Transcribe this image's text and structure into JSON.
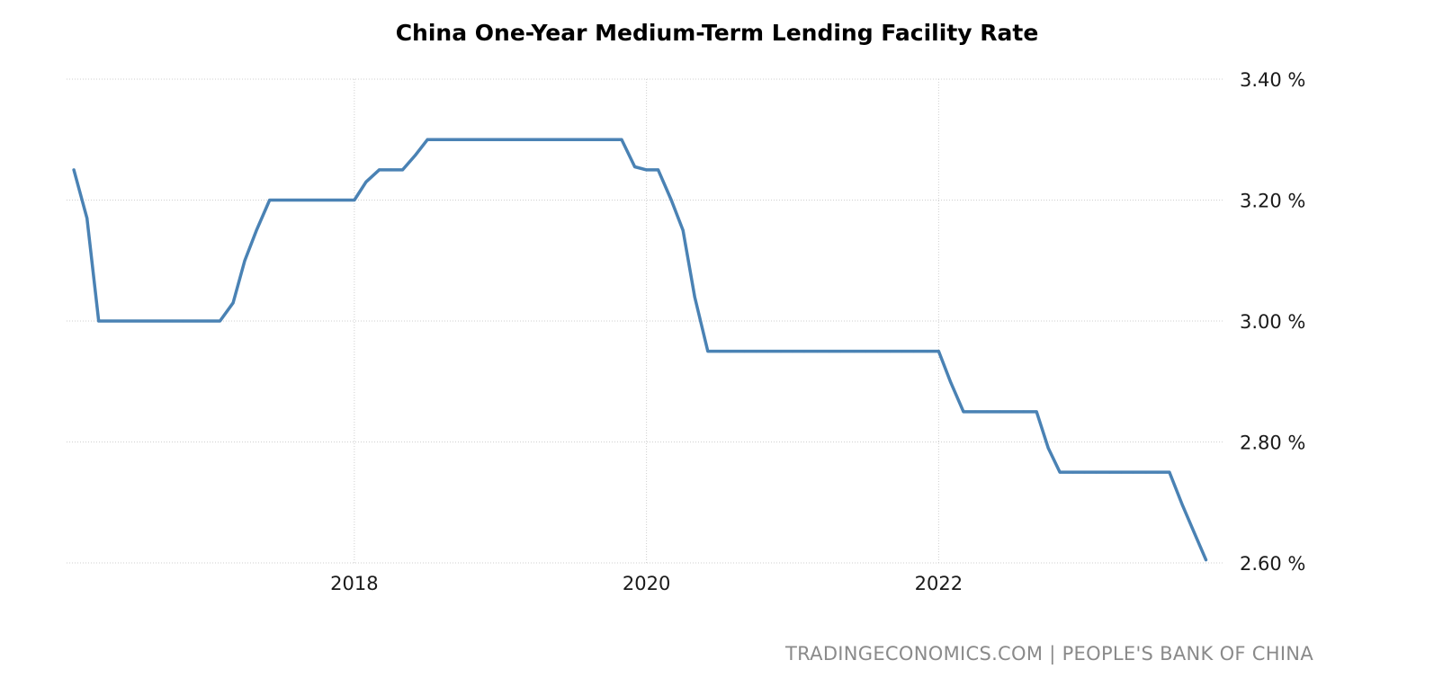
{
  "source": "TRADINGECONOMICS.COM | PEOPLE'S BANK OF CHINA",
  "chart_data": {
    "type": "line",
    "title": "China One-Year Medium-Term Lending Facility Rate",
    "xlabel": "",
    "ylabel": "",
    "grid": true,
    "y_axis_position": "right",
    "x_ticks": [
      {
        "year": 2018,
        "label": "2018"
      },
      {
        "year": 2020,
        "label": "2020"
      },
      {
        "year": 2022,
        "label": "2022"
      }
    ],
    "y_ticks": [
      {
        "value": 3.4,
        "label": "3.40 %"
      },
      {
        "value": 3.2,
        "label": "3.20 %"
      },
      {
        "value": 3.0,
        "label": "3.00 %"
      },
      {
        "value": 2.8,
        "label": "2.80 %"
      },
      {
        "value": 2.6,
        "label": "2.60 %"
      }
    ],
    "xlim": [
      2016.03,
      2023.95
    ],
    "ylim": [
      2.6,
      3.4
    ],
    "series": [
      {
        "color": "#4a82b4",
        "x": [
          2016.08,
          2016.17,
          2016.25,
          2016.33,
          2016.42,
          2016.5,
          2016.58,
          2016.67,
          2016.75,
          2016.83,
          2016.92,
          2017.0,
          2017.08,
          2017.17,
          2017.25,
          2017.33,
          2017.42,
          2017.5,
          2017.58,
          2017.67,
          2017.75,
          2017.83,
          2017.92,
          2018.0,
          2018.08,
          2018.17,
          2018.25,
          2018.33,
          2018.42,
          2018.5,
          2018.58,
          2018.67,
          2018.75,
          2018.83,
          2018.92,
          2019.0,
          2019.08,
          2019.17,
          2019.25,
          2019.33,
          2019.42,
          2019.5,
          2019.58,
          2019.67,
          2019.75,
          2019.83,
          2019.92,
          2020.0,
          2020.08,
          2020.17,
          2020.25,
          2020.33,
          2020.42,
          2020.5,
          2020.58,
          2020.67,
          2020.75,
          2020.83,
          2020.92,
          2021.0,
          2021.08,
          2021.17,
          2021.25,
          2021.33,
          2021.42,
          2021.5,
          2021.58,
          2021.67,
          2021.75,
          2021.83,
          2021.92,
          2022.0,
          2022.08,
          2022.17,
          2022.25,
          2022.33,
          2022.42,
          2022.5,
          2022.58,
          2022.67,
          2022.75,
          2022.83,
          2022.92,
          2023.0,
          2023.08,
          2023.17,
          2023.25,
          2023.33,
          2023.42,
          2023.5,
          2023.58,
          2023.67,
          2023.75,
          2023.83
        ],
        "values": [
          3.25,
          3.17,
          3.0,
          3.0,
          3.0,
          3.0,
          3.0,
          3.0,
          3.0,
          3.0,
          3.0,
          3.0,
          3.0,
          3.03,
          3.1,
          3.15,
          3.2,
          3.2,
          3.2,
          3.2,
          3.2,
          3.2,
          3.2,
          3.2,
          3.23,
          3.25,
          3.25,
          3.25,
          3.275,
          3.3,
          3.3,
          3.3,
          3.3,
          3.3,
          3.3,
          3.3,
          3.3,
          3.3,
          3.3,
          3.3,
          3.3,
          3.3,
          3.3,
          3.3,
          3.3,
          3.3,
          3.255,
          3.25,
          3.25,
          3.2,
          3.15,
          3.04,
          2.95,
          2.95,
          2.95,
          2.95,
          2.95,
          2.95,
          2.95,
          2.95,
          2.95,
          2.95,
          2.95,
          2.95,
          2.95,
          2.95,
          2.95,
          2.95,
          2.95,
          2.95,
          2.95,
          2.95,
          2.9,
          2.85,
          2.85,
          2.85,
          2.85,
          2.85,
          2.85,
          2.85,
          2.79,
          2.75,
          2.75,
          2.75,
          2.75,
          2.75,
          2.75,
          2.75,
          2.75,
          2.75,
          2.75,
          2.695,
          2.65,
          2.605
        ]
      }
    ]
  }
}
